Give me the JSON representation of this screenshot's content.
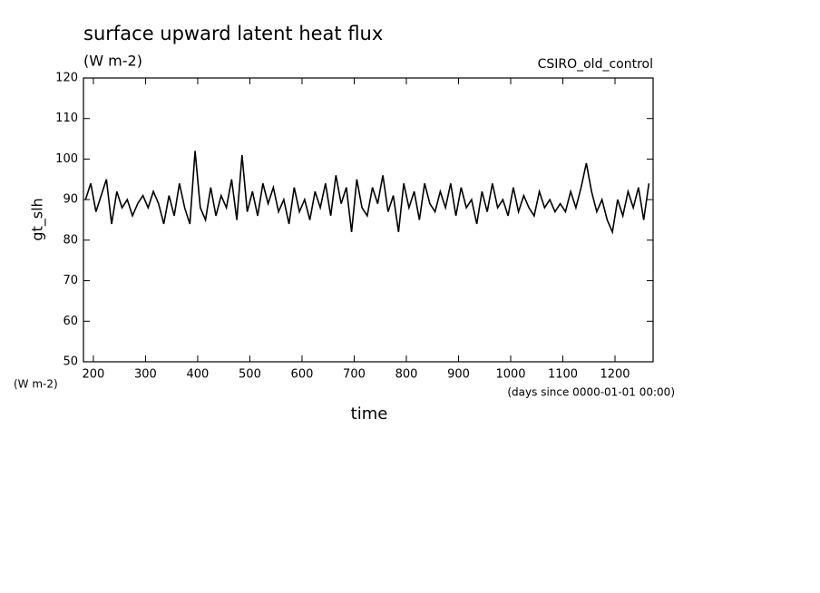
{
  "chart_data": {
    "type": "line",
    "title": "surface upward latent heat flux",
    "subtitle": "(W m-2)",
    "annotation": "CSIRO_old_control",
    "y_label": "gt_slh",
    "y_units": "(W m-2)",
    "x_units": "(days since 0000-01-01 00:00)",
    "x_label": "time",
    "xlim": [
      181,
      1273
    ],
    "ylim": [
      50,
      120
    ],
    "xticks": [
      200,
      300,
      400,
      500,
      600,
      700,
      800,
      900,
      1000,
      1100,
      1200
    ],
    "yticks": [
      50,
      60,
      70,
      80,
      90,
      100,
      110,
      120
    ],
    "color": "#000000",
    "x": [
      185,
      195,
      205,
      215,
      225,
      235,
      245,
      255,
      265,
      275,
      285,
      295,
      305,
      315,
      325,
      335,
      345,
      355,
      365,
      375,
      385,
      395,
      405,
      415,
      425,
      435,
      445,
      455,
      465,
      475,
      485,
      495,
      505,
      515,
      525,
      535,
      545,
      555,
      565,
      575,
      585,
      595,
      605,
      615,
      625,
      635,
      645,
      655,
      665,
      675,
      685,
      695,
      705,
      715,
      725,
      735,
      745,
      755,
      765,
      775,
      785,
      795,
      805,
      815,
      825,
      835,
      845,
      855,
      865,
      875,
      885,
      895,
      905,
      915,
      925,
      935,
      945,
      955,
      965,
      975,
      985,
      995,
      1005,
      1015,
      1025,
      1035,
      1045,
      1055,
      1065,
      1075,
      1085,
      1095,
      1105,
      1115,
      1125,
      1135,
      1145,
      1155,
      1165,
      1175,
      1185,
      1195,
      1205,
      1215,
      1225,
      1235,
      1245,
      1255,
      1265
    ],
    "values": [
      90,
      94,
      87,
      91,
      95,
      84,
      92,
      88,
      90,
      86,
      89,
      91,
      88,
      92,
      89,
      84,
      91,
      86,
      94,
      88,
      84,
      102,
      88,
      85,
      93,
      86,
      91,
      88,
      95,
      85,
      101,
      87,
      92,
      86,
      94,
      89,
      93,
      87,
      90,
      84,
      93,
      87,
      90,
      85,
      92,
      88,
      94,
      86,
      96,
      89,
      93,
      82,
      95,
      88,
      86,
      93,
      89,
      96,
      87,
      91,
      82,
      94,
      88,
      92,
      85,
      94,
      89,
      87,
      92,
      88,
      94,
      86,
      93,
      88,
      90,
      84,
      92,
      87,
      94,
      88,
      90,
      86,
      93,
      87,
      91,
      88,
      86,
      92,
      88,
      90,
      87,
      89,
      87,
      92,
      88,
      93,
      99,
      92,
      87,
      90,
      85,
      82,
      90,
      86,
      92,
      88,
      93,
      85,
      94
    ]
  }
}
